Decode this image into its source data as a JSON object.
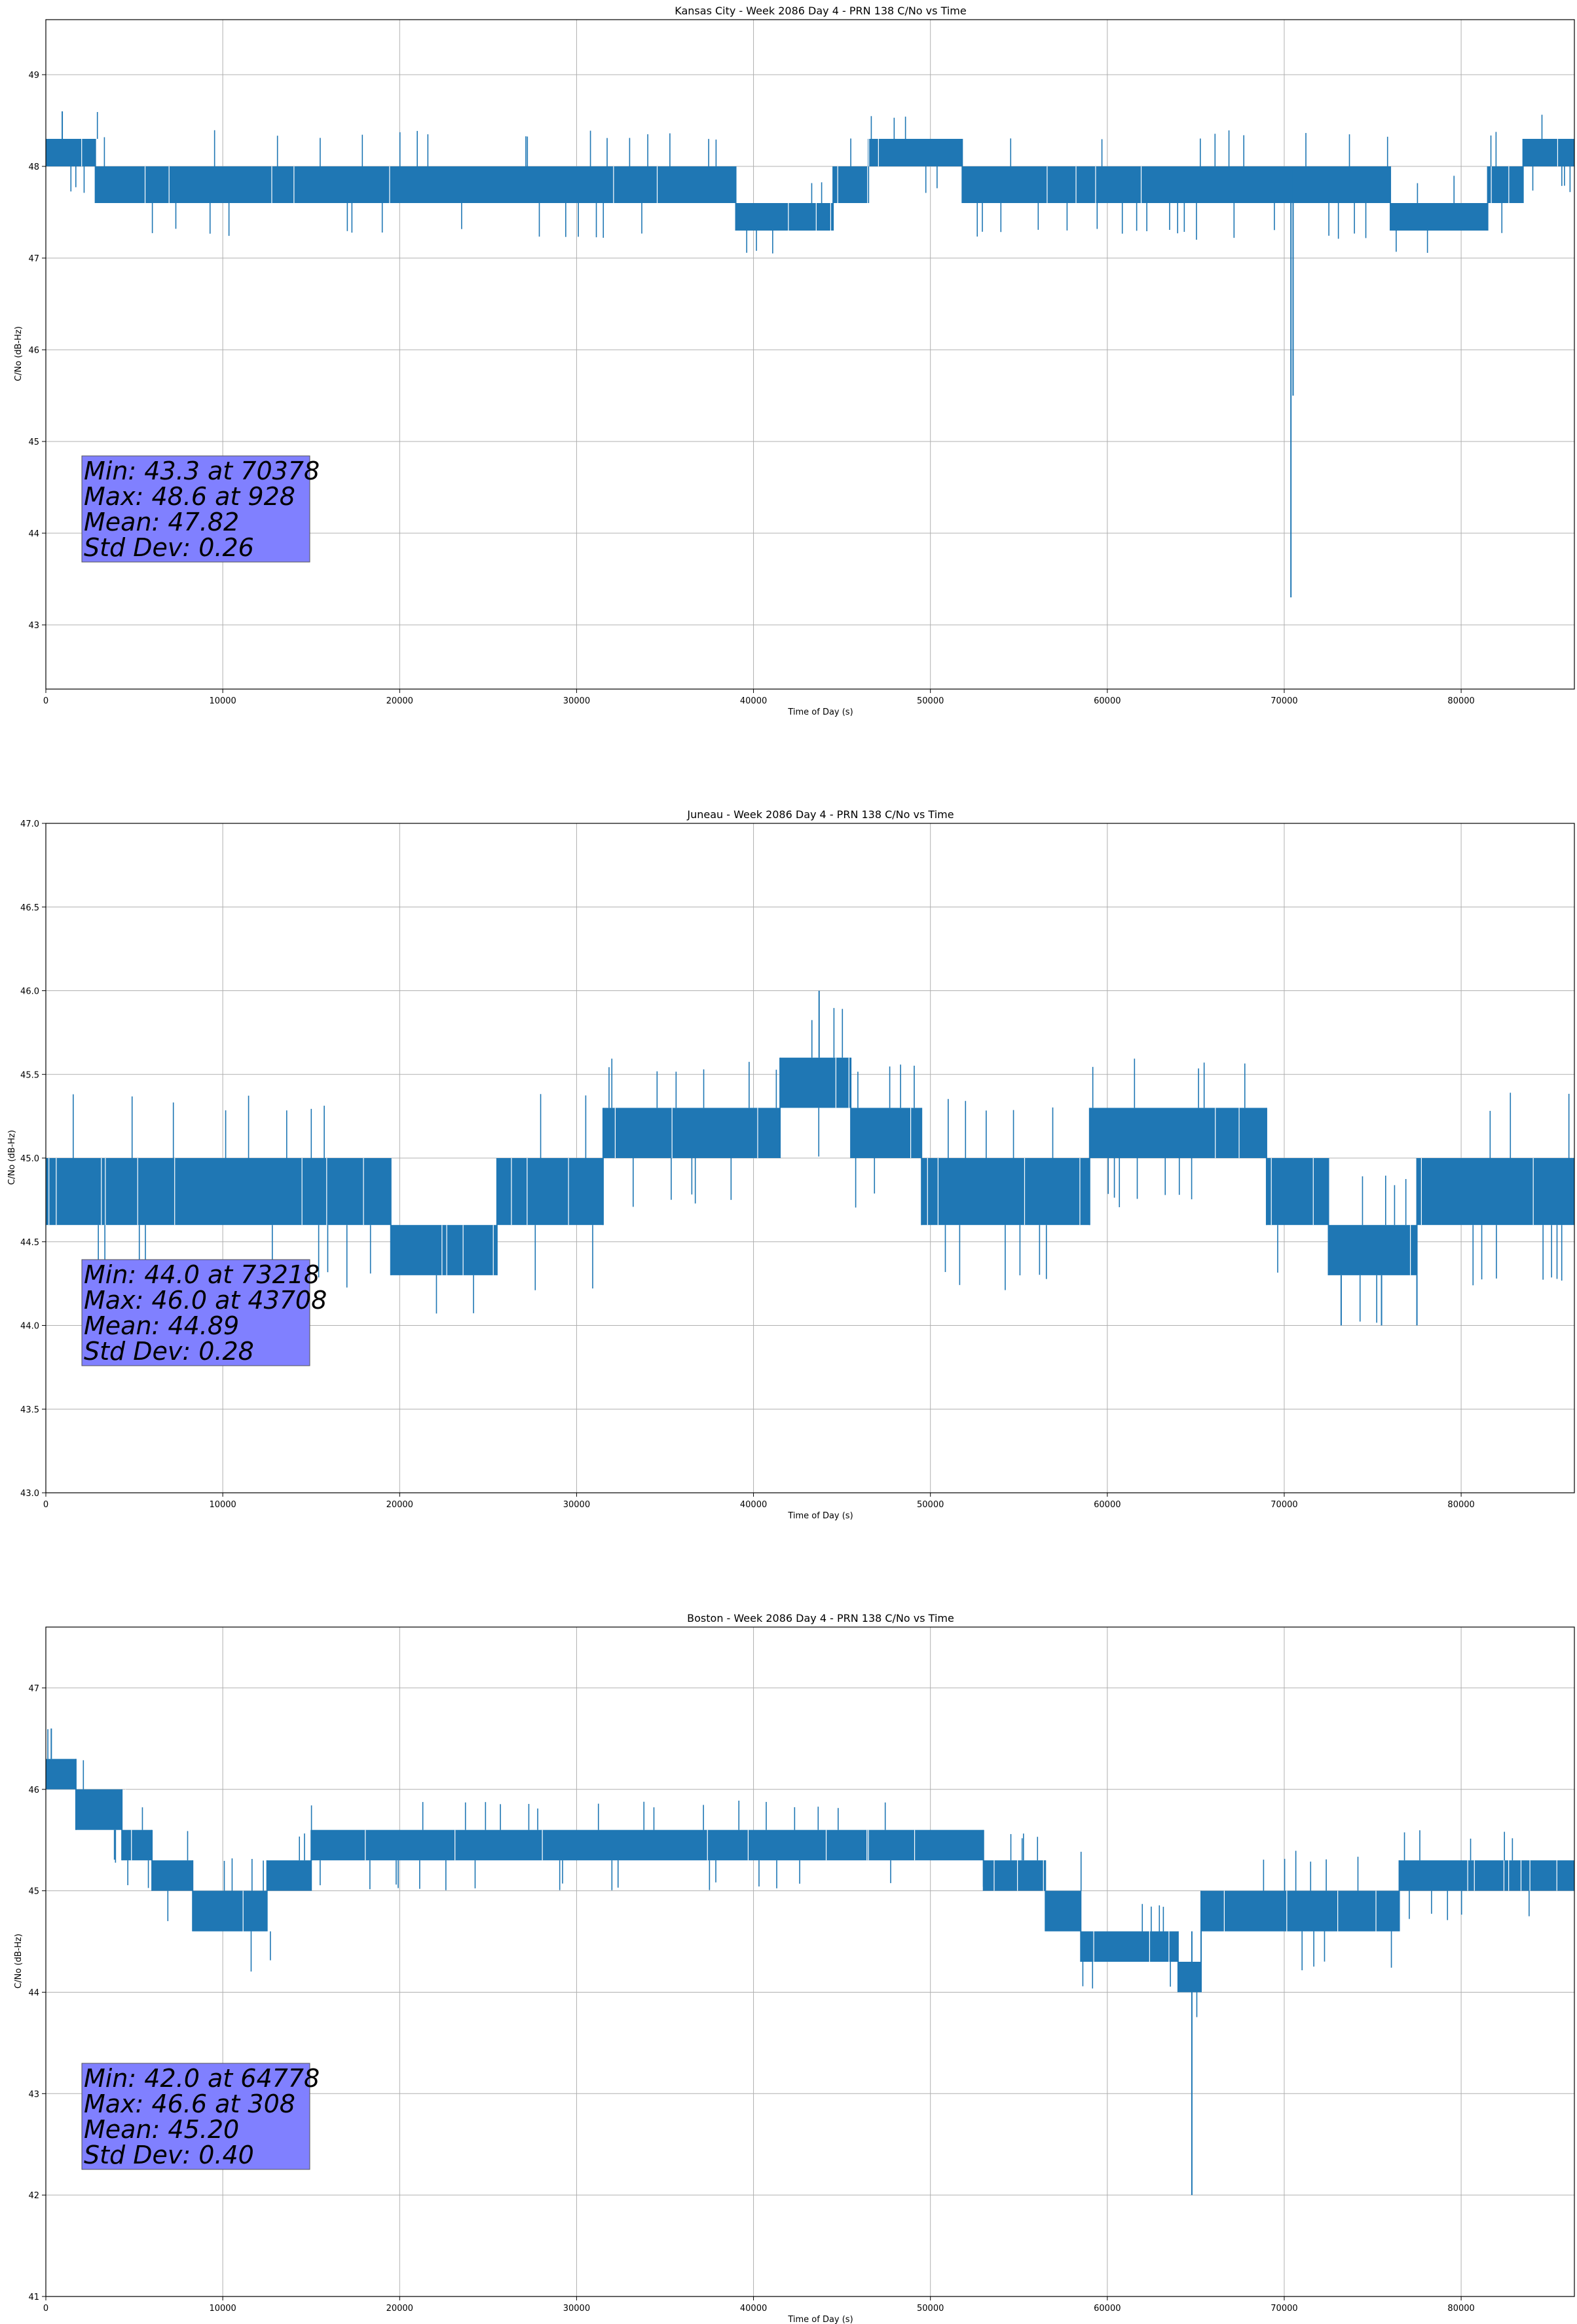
{
  "chart_data": [
    {
      "type": "line",
      "title": "Kansas City - Week 2086 Day 4 - PRN 138 C/No vs Time",
      "xlabel": "Time of Day (s)",
      "ylabel": "C/No (dB-Hz)",
      "xlim": [
        0,
        86400
      ],
      "ylim": [
        42.3,
        49.6
      ],
      "xticks": [
        0,
        10000,
        20000,
        30000,
        40000,
        50000,
        60000,
        70000,
        80000
      ],
      "yticks": [
        43,
        44,
        45,
        46,
        47,
        48,
        49
      ],
      "grid": true,
      "color": "#1f77b4",
      "stats": [
        "Min: 43.3 at 70378",
        "Max: 48.6 at 928",
        "Mean: 47.82",
        "Std Dev: 0.26"
      ],
      "bands": [
        {
          "x": [
            0,
            2800
          ],
          "y": [
            48.0,
            48.3
          ]
        },
        {
          "x": [
            2800,
            14200
          ],
          "y": [
            47.6,
            48.0
          ]
        },
        {
          "x": [
            14200,
            39000
          ],
          "y": [
            47.6,
            48.0
          ]
        },
        {
          "x": [
            39000,
            44500
          ],
          "y": [
            47.3,
            47.6
          ]
        },
        {
          "x": [
            44500,
            46500
          ],
          "y": [
            47.6,
            48.0
          ]
        },
        {
          "x": [
            46500,
            51800
          ],
          "y": [
            48.0,
            48.3
          ]
        },
        {
          "x": [
            51800,
            70500
          ],
          "y": [
            47.6,
            48.0
          ]
        },
        {
          "x": [
            70500,
            76000
          ],
          "y": [
            47.6,
            48.0
          ]
        },
        {
          "x": [
            76000,
            81500
          ],
          "y": [
            47.3,
            47.6
          ]
        },
        {
          "x": [
            81500,
            83500
          ],
          "y": [
            47.6,
            48.0
          ]
        },
        {
          "x": [
            83500,
            86400
          ],
          "y": [
            48.0,
            48.3
          ]
        }
      ],
      "spikes": [
        {
          "x": 928,
          "y": [
            48.3,
            48.6
          ]
        },
        {
          "x": 70378,
          "y": [
            43.3,
            47.6
          ]
        },
        {
          "x": 70500,
          "y": [
            45.5,
            47.6
          ]
        }
      ]
    },
    {
      "type": "line",
      "title": "Juneau - Week 2086 Day 4 - PRN 138 C/No vs Time",
      "xlabel": "Time of Day (s)",
      "ylabel": "C/No (dB-Hz)",
      "xlim": [
        0,
        86400
      ],
      "ylim": [
        43.0,
        47.0
      ],
      "xticks": [
        0,
        10000,
        20000,
        30000,
        40000,
        50000,
        60000,
        70000,
        80000
      ],
      "yticks": [
        43.0,
        43.5,
        44.0,
        44.5,
        45.0,
        45.5,
        46.0,
        46.5,
        47.0
      ],
      "grid": true,
      "color": "#1f77b4",
      "stats": [
        "Min: 44.0 at 73218",
        "Max: 46.0 at 43708",
        "Mean: 44.89",
        "Std Dev: 0.28"
      ],
      "bands": [
        {
          "x": [
            0,
            19500
          ],
          "y": [
            44.6,
            45.0
          ]
        },
        {
          "x": [
            19500,
            25500
          ],
          "y": [
            44.3,
            44.6
          ]
        },
        {
          "x": [
            25500,
            31500
          ],
          "y": [
            44.6,
            45.0
          ]
        },
        {
          "x": [
            31500,
            41500
          ],
          "y": [
            45.0,
            45.3
          ]
        },
        {
          "x": [
            41500,
            45500
          ],
          "y": [
            45.3,
            45.6
          ]
        },
        {
          "x": [
            45500,
            49500
          ],
          "y": [
            45.0,
            45.3
          ]
        },
        {
          "x": [
            49500,
            59000
          ],
          "y": [
            44.6,
            45.0
          ]
        },
        {
          "x": [
            59000,
            69000
          ],
          "y": [
            45.0,
            45.3
          ]
        },
        {
          "x": [
            69000,
            72500
          ],
          "y": [
            44.6,
            45.0
          ]
        },
        {
          "x": [
            72500,
            77500
          ],
          "y": [
            44.3,
            44.6
          ]
        },
        {
          "x": [
            77500,
            86400
          ],
          "y": [
            44.6,
            45.0
          ]
        }
      ],
      "spikes": [
        {
          "x": 43708,
          "y": [
            45.6,
            46.0
          ]
        },
        {
          "x": 73218,
          "y": [
            44.0,
            44.3
          ]
        },
        {
          "x": 75500,
          "y": [
            44.0,
            44.3
          ]
        },
        {
          "x": 77500,
          "y": [
            44.0,
            44.3
          ]
        }
      ]
    },
    {
      "type": "line",
      "title": "Boston - Week 2086 Day 4 - PRN 138 C/No vs Time",
      "xlabel": "Time of Day (s)",
      "ylabel": "C/No (dB-Hz)",
      "xlim": [
        0,
        86400
      ],
      "ylim": [
        41.0,
        47.6
      ],
      "xticks": [
        0,
        10000,
        20000,
        30000,
        40000,
        50000,
        60000,
        70000,
        80000
      ],
      "yticks": [
        41,
        42,
        43,
        44,
        45,
        46,
        47
      ],
      "grid": true,
      "color": "#1f77b4",
      "stats": [
        "Min: 42.0 at 64778",
        "Max: 46.6 at 308",
        "Mean: 45.20",
        "Std Dev: 0.40"
      ],
      "bands": [
        {
          "x": [
            0,
            1700
          ],
          "y": [
            46.0,
            46.3
          ]
        },
        {
          "x": [
            1700,
            4300
          ],
          "y": [
            45.6,
            46.0
          ]
        },
        {
          "x": [
            4300,
            6000
          ],
          "y": [
            45.3,
            45.6
          ]
        },
        {
          "x": [
            6000,
            8300
          ],
          "y": [
            45.0,
            45.3
          ]
        },
        {
          "x": [
            8300,
            12500
          ],
          "y": [
            44.6,
            45.0
          ]
        },
        {
          "x": [
            12500,
            15000
          ],
          "y": [
            45.0,
            45.3
          ]
        },
        {
          "x": [
            15000,
            53000
          ],
          "y": [
            45.3,
            45.6
          ]
        },
        {
          "x": [
            53000,
            56500
          ],
          "y": [
            45.0,
            45.3
          ]
        },
        {
          "x": [
            56500,
            58500
          ],
          "y": [
            44.6,
            45.0
          ]
        },
        {
          "x": [
            58500,
            64000
          ],
          "y": [
            44.3,
            44.6
          ]
        },
        {
          "x": [
            64000,
            65300
          ],
          "y": [
            44.0,
            44.3
          ]
        },
        {
          "x": [
            65300,
            76500
          ],
          "y": [
            44.6,
            45.0
          ]
        },
        {
          "x": [
            76500,
            86400
          ],
          "y": [
            45.0,
            45.3
          ]
        }
      ],
      "spikes": [
        {
          "x": 308,
          "y": [
            46.3,
            46.6
          ]
        },
        {
          "x": 64778,
          "y": [
            42.0,
            44.6
          ]
        }
      ]
    }
  ]
}
